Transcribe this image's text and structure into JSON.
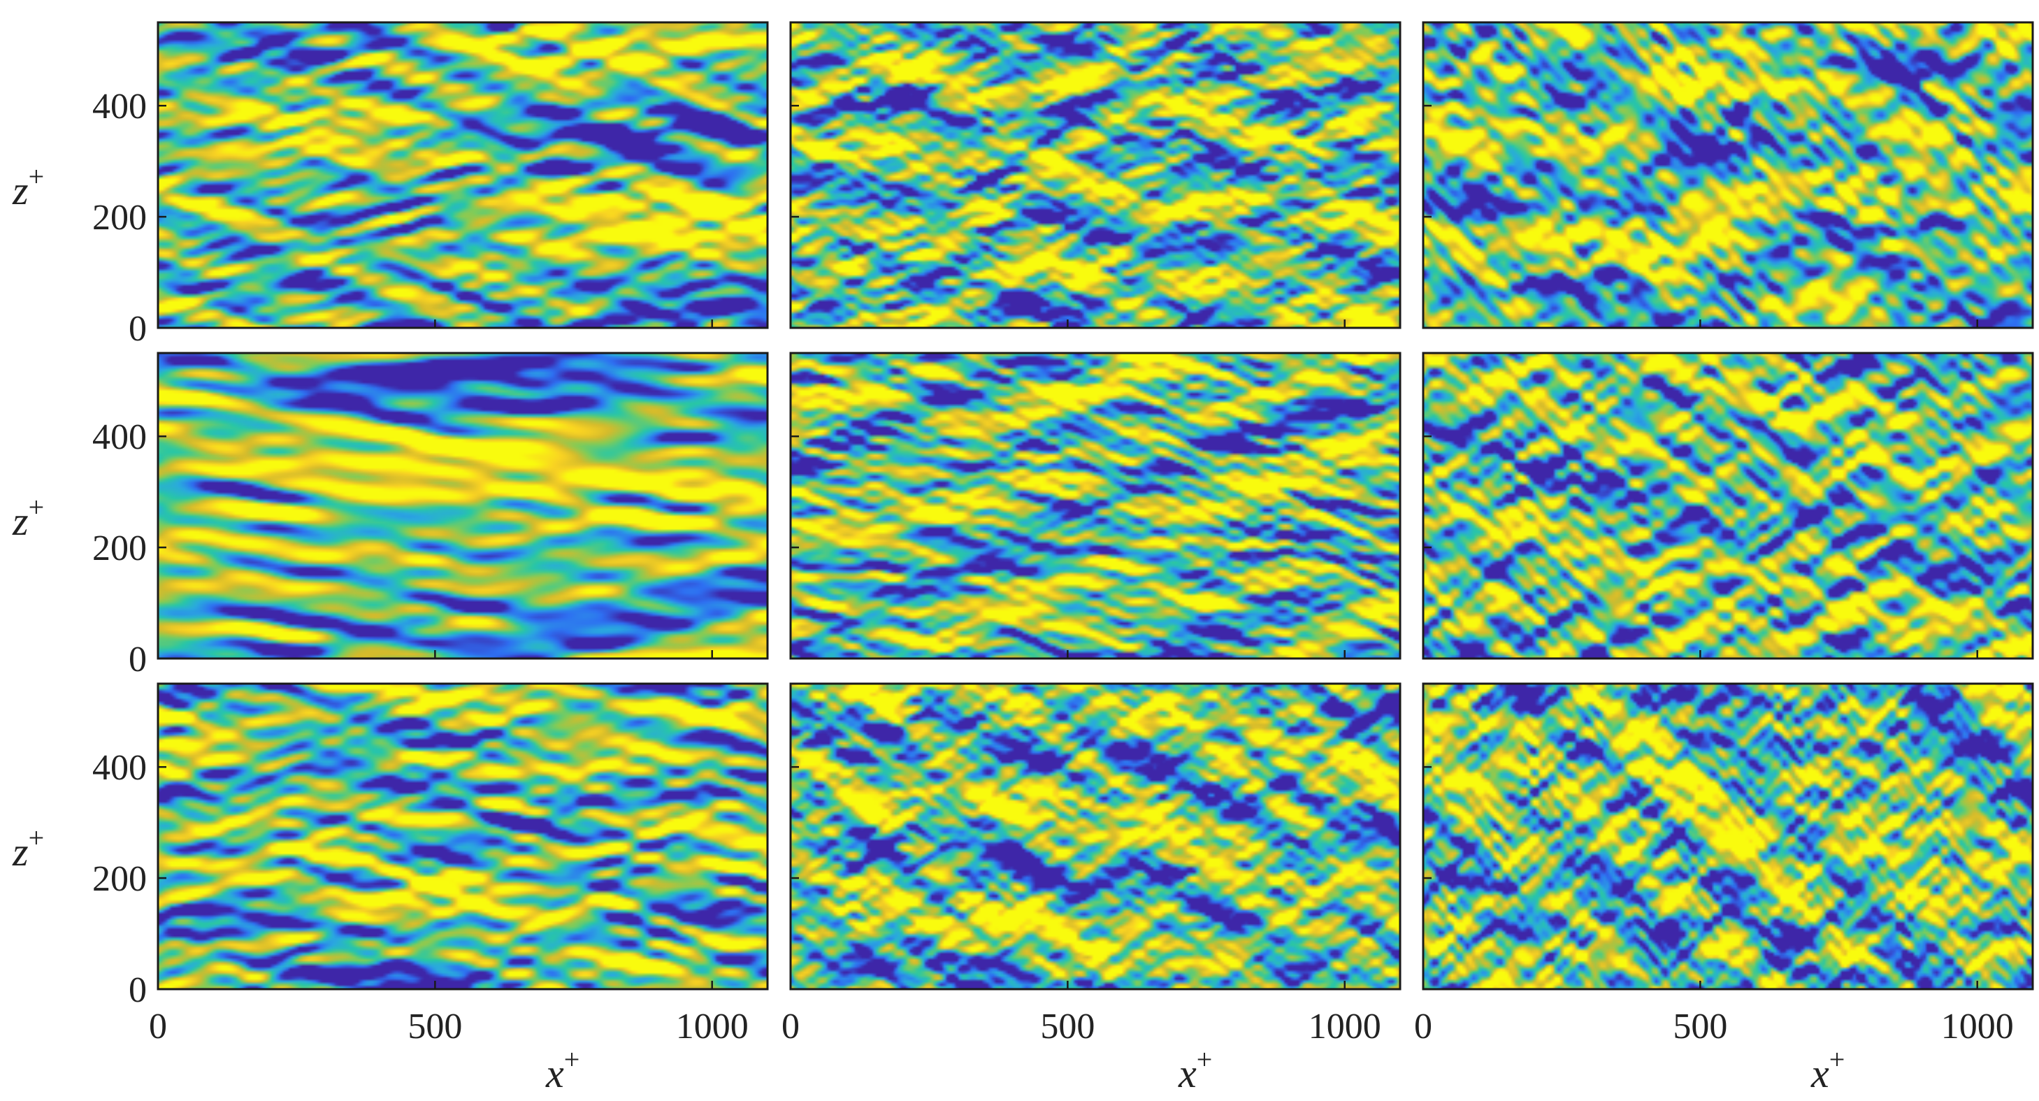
{
  "figure": {
    "colormap": [
      "#3e26a8",
      "#2e6ff2",
      "#2aa9df",
      "#28c7a6",
      "#81cc58",
      "#d4bb2c",
      "#f9d223",
      "#f9fb0e"
    ]
  },
  "chart_data": {
    "type": "heatmap",
    "layout": {
      "rows": 3,
      "cols": 3
    },
    "xlabel": "x",
    "ylabel": "z",
    "label_superscript": "+",
    "xlim": [
      0,
      1100
    ],
    "ylim": [
      0,
      550
    ],
    "xticks": [
      0,
      500,
      1000
    ],
    "yticks": [
      0,
      200,
      400
    ],
    "xtick_labels": [
      "0",
      "500",
      "1000"
    ],
    "ytick_labels": [
      "0",
      "200",
      "400"
    ],
    "panels": [
      {
        "row": 1,
        "col": 1,
        "pattern": "streamwise streaks",
        "aspect": 3.6,
        "smooth": 2
      },
      {
        "row": 1,
        "col": 2,
        "pattern": "fine-scale elongated structures",
        "aspect": 2.2,
        "smooth": 1
      },
      {
        "row": 1,
        "col": 3,
        "pattern": "blob-like structures",
        "aspect": 1.3,
        "smooth": 2
      },
      {
        "row": 2,
        "col": 1,
        "pattern": "streamwise streaks",
        "aspect": 5.0,
        "smooth": 3
      },
      {
        "row": 2,
        "col": 2,
        "pattern": "fine-scale elongated structures",
        "aspect": 3.2,
        "smooth": 1
      },
      {
        "row": 2,
        "col": 3,
        "pattern": "blob-like structures",
        "aspect": 1.6,
        "smooth": 2
      },
      {
        "row": 3,
        "col": 1,
        "pattern": "streamwise streaks",
        "aspect": 3.8,
        "smooth": 2
      },
      {
        "row": 3,
        "col": 2,
        "pattern": "fine-scale elongated structures",
        "aspect": 1.8,
        "smooth": 1
      },
      {
        "row": 3,
        "col": 3,
        "pattern": "blob-like structures",
        "aspect": 1.2,
        "smooth": 2
      }
    ]
  }
}
